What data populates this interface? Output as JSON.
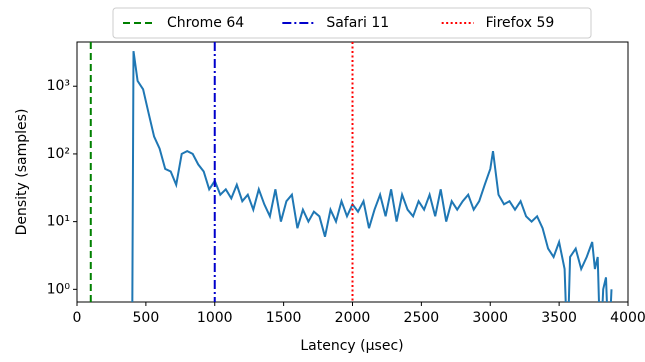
{
  "chart_data": {
    "type": "line",
    "xlabel": "Latency (μsec)",
    "ylabel": "Density (samples)",
    "xlim": [
      0,
      4000
    ],
    "xticks": [
      0,
      500,
      1000,
      1500,
      2000,
      2500,
      3000,
      3500,
      4000
    ],
    "ylim": [
      0.65,
      4500
    ],
    "log_y": true,
    "yticks": [
      {
        "value": 1,
        "label": "10⁰"
      },
      {
        "value": 10,
        "label": "10¹"
      },
      {
        "value": 100,
        "label": "10²"
      },
      {
        "value": 1000,
        "label": "10³"
      }
    ],
    "x": [
      400,
      410,
      440,
      480,
      520,
      560,
      600,
      640,
      680,
      720,
      760,
      800,
      840,
      880,
      920,
      960,
      1000,
      1040,
      1080,
      1120,
      1160,
      1200,
      1240,
      1280,
      1320,
      1360,
      1400,
      1440,
      1480,
      1520,
      1560,
      1600,
      1640,
      1680,
      1720,
      1760,
      1800,
      1840,
      1880,
      1920,
      1960,
      2000,
      2040,
      2080,
      2120,
      2160,
      2200,
      2240,
      2280,
      2320,
      2360,
      2400,
      2440,
      2480,
      2520,
      2560,
      2600,
      2640,
      2680,
      2720,
      2760,
      2800,
      2840,
      2880,
      2920,
      2960,
      3000,
      3020,
      3060,
      3100,
      3140,
      3180,
      3220,
      3260,
      3300,
      3340,
      3380,
      3420,
      3460,
      3500,
      3540,
      3560,
      3580,
      3620,
      3660,
      3700,
      3740,
      3760,
      3780,
      3800,
      3820,
      3840,
      3860,
      3880
    ],
    "series": [
      {
        "color": "#1f77b4",
        "values": [
          0,
          3300,
          1200,
          900,
          400,
          180,
          120,
          60,
          55,
          35,
          100,
          110,
          100,
          70,
          55,
          30,
          40,
          25,
          30,
          22,
          35,
          20,
          25,
          15,
          30,
          18,
          12,
          30,
          10,
          20,
          25,
          8,
          15,
          10,
          14,
          12,
          6,
          15,
          10,
          20,
          12,
          18,
          14,
          20,
          8,
          15,
          25,
          12,
          30,
          10,
          25,
          15,
          12,
          20,
          15,
          25,
          12,
          30,
          10,
          20,
          15,
          20,
          25,
          15,
          20,
          35,
          60,
          110,
          25,
          18,
          20,
          15,
          20,
          12,
          10,
          12,
          8,
          4,
          3,
          5,
          2,
          0,
          3,
          4,
          2,
          3,
          5,
          2,
          3,
          0,
          1,
          1.5,
          0,
          1
        ]
      }
    ],
    "vlines": [
      {
        "name": "Chrome 64",
        "x": 100,
        "color": "#008000",
        "style": "dashed"
      },
      {
        "name": "Safari 11",
        "x": 1000,
        "color": "#0000cc",
        "style": "dashdot"
      },
      {
        "name": "Firefox 59",
        "x": 2000,
        "color": "#ff0000",
        "style": "dotted"
      }
    ],
    "legend": "top"
  }
}
